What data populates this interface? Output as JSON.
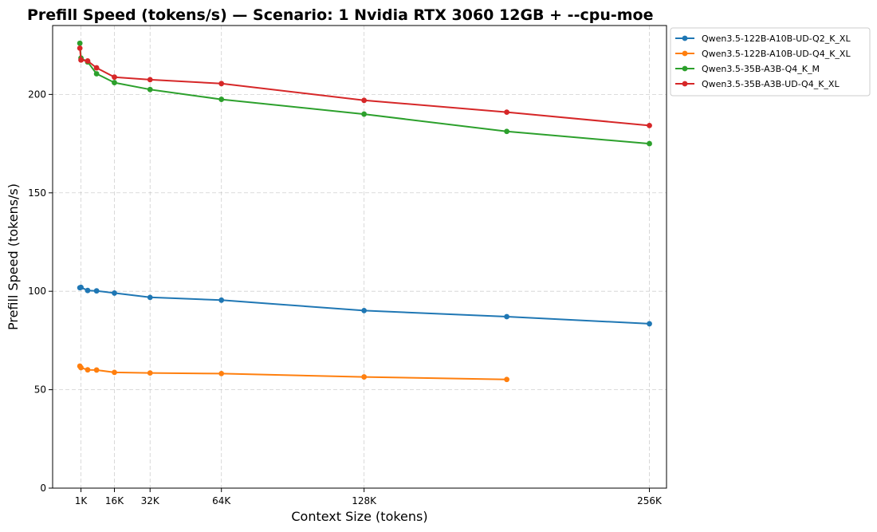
{
  "chart_data": {
    "type": "line",
    "title": "Prefill Speed (tokens/s) — Scenario: 1 Nvidia RTX 3060 12GB + --cpu-moe",
    "xlabel": "Context Size (tokens)",
    "ylabel": "Prefill Speed (tokens/s)",
    "xlim": [
      -12000,
      270000
    ],
    "ylim": [
      0,
      235
    ],
    "xticks": [
      {
        "value": 1024,
        "label": "1K"
      },
      {
        "value": 16384,
        "label": "16K"
      },
      {
        "value": 32768,
        "label": "32K"
      },
      {
        "value": 65536,
        "label": "64K"
      },
      {
        "value": 131072,
        "label": "128K"
      },
      {
        "value": 262144,
        "label": "256K"
      }
    ],
    "yticks": [
      0,
      50,
      100,
      150,
      200
    ],
    "grid": true,
    "legend_position": "outside-top-right",
    "series": [
      {
        "name": "Qwen3.5-122B-A10B-UD-Q2_K_XL",
        "color": "#1f77b4",
        "x": [
          512,
          1024,
          4096,
          8192,
          16384,
          32768,
          65536,
          131072,
          196608,
          262144
        ],
        "y": [
          101.8,
          102.0,
          100.4,
          100.2,
          99.1,
          96.9,
          95.5,
          90.2,
          87.1,
          83.5
        ]
      },
      {
        "name": "Qwen3.5-122B-A10B-UD-Q4_K_XL",
        "color": "#ff7f0e",
        "x": [
          512,
          1024,
          4096,
          8192,
          16384,
          32768,
          65536,
          131072,
          196608
        ],
        "y": [
          62.0,
          61.2,
          60.1,
          60.0,
          58.8,
          58.5,
          58.2,
          56.5,
          55.2
        ]
      },
      {
        "name": "Qwen3.5-35B-A3B-Q4_K_M",
        "color": "#2ca02c",
        "x": [
          512,
          1024,
          4096,
          8192,
          16384,
          32768,
          65536,
          131072,
          196608,
          262144
        ],
        "y": [
          226.0,
          218.5,
          216.5,
          210.5,
          206.0,
          202.5,
          197.5,
          190.0,
          181.2,
          175.0
        ]
      },
      {
        "name": "Qwen3.5-35B-A3B-UD-Q4_K_XL",
        "color": "#d62728",
        "x": [
          512,
          1024,
          4096,
          8192,
          16384,
          32768,
          65536,
          131072,
          196608,
          262144
        ],
        "y": [
          223.5,
          217.5,
          217.0,
          213.5,
          208.8,
          207.5,
          205.5,
          197.0,
          191.0,
          184.2
        ]
      }
    ]
  }
}
